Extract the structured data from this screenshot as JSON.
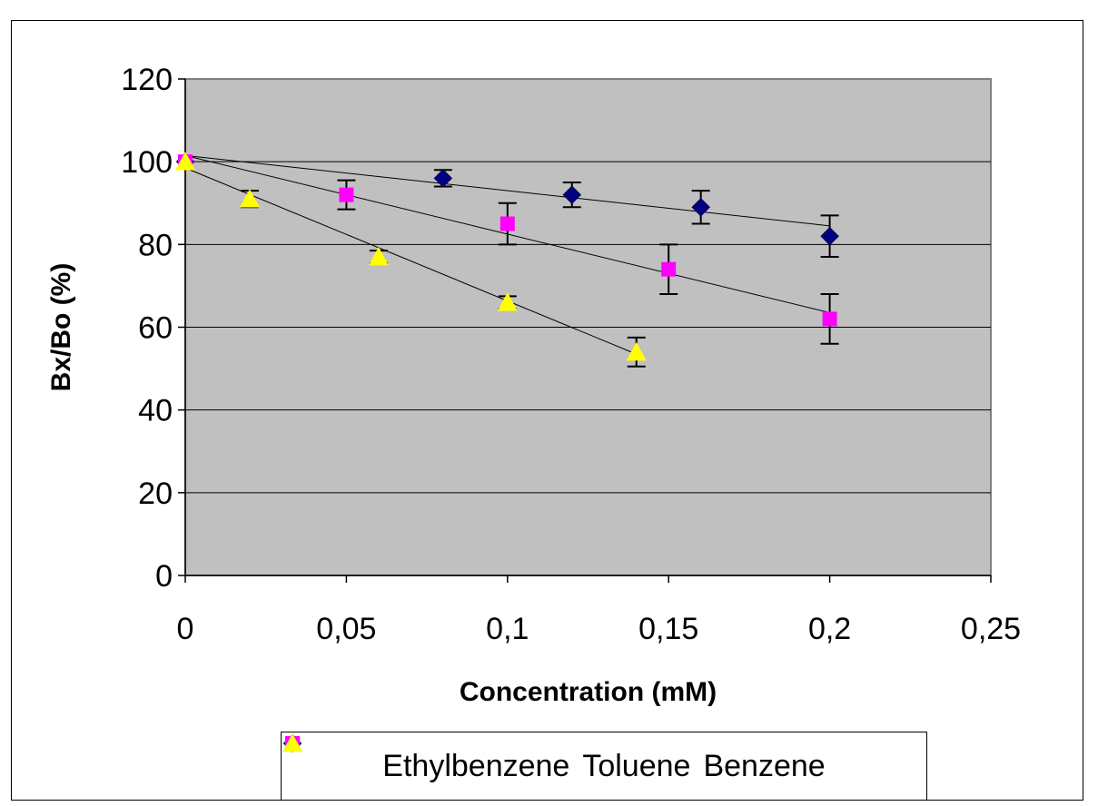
{
  "chart_data": {
    "type": "scatter",
    "xlabel": "Concentration (mM)",
    "ylabel": "Bx/Bo (%)",
    "xlim": [
      0,
      0.25
    ],
    "ylim": [
      0,
      120
    ],
    "x_ticks": [
      "0",
      "0,05",
      "0,1",
      "0,15",
      "0,2",
      "0,25"
    ],
    "x_tick_values": [
      0,
      0.05,
      0.1,
      0.15,
      0.2,
      0.25
    ],
    "y_ticks": [
      "0",
      "20",
      "40",
      "60",
      "80",
      "100",
      "120"
    ],
    "y_tick_values": [
      0,
      20,
      40,
      60,
      80,
      100,
      120
    ],
    "grid": "horizontal",
    "plot_background": "#c0c0c0",
    "legend_position": "bottom",
    "series": [
      {
        "name": "Ethylbenzene",
        "marker": "diamond",
        "color": "#000080",
        "points": [
          {
            "x": 0,
            "y": 100,
            "err": 0
          },
          {
            "x": 0.08,
            "y": 96,
            "err": 2
          },
          {
            "x": 0.12,
            "y": 92,
            "err": 3
          },
          {
            "x": 0.16,
            "y": 89,
            "err": 4
          },
          {
            "x": 0.2,
            "y": 82,
            "err": 5
          }
        ],
        "trend": {
          "x": [
            0,
            0.2
          ],
          "y": [
            101.5,
            84.5
          ]
        }
      },
      {
        "name": "Toluene",
        "marker": "square",
        "color": "#ff00ff",
        "points": [
          {
            "x": 0,
            "y": 100,
            "err": 0
          },
          {
            "x": 0.05,
            "y": 92,
            "err": 3.5
          },
          {
            "x": 0.1,
            "y": 85,
            "err": 5
          },
          {
            "x": 0.15,
            "y": 74,
            "err": 6
          },
          {
            "x": 0.2,
            "y": 62,
            "err": 6
          }
        ],
        "trend": {
          "x": [
            0,
            0.2
          ],
          "y": [
            101.5,
            63.5
          ]
        }
      },
      {
        "name": "Benzene",
        "marker": "triangle",
        "color": "#ffff00",
        "points": [
          {
            "x": 0,
            "y": 100,
            "err": 0
          },
          {
            "x": 0.02,
            "y": 91,
            "err": 2
          },
          {
            "x": 0.06,
            "y": 77,
            "err": 1.5
          },
          {
            "x": 0.1,
            "y": 66,
            "err": 1.5
          },
          {
            "x": 0.14,
            "y": 54,
            "err": 3.5
          }
        ],
        "trend": {
          "x": [
            0,
            0.14
          ],
          "y": [
            98.5,
            53.5
          ]
        }
      }
    ]
  }
}
